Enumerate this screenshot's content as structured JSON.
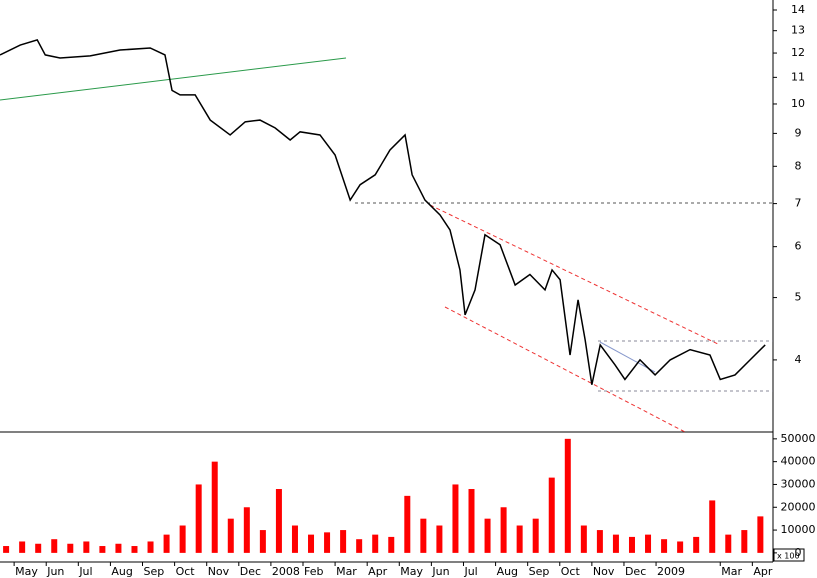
{
  "chart_data": [
    {
      "type": "line",
      "log_scale": true,
      "grid": false,
      "ylim": [
        3.09,
        14.51
      ],
      "yticks": [
        4,
        5,
        6,
        7,
        8,
        9,
        10,
        11,
        12,
        13,
        14
      ],
      "xlim": [
        -0.44,
        23.55
      ],
      "series": [
        {
          "color": "#000000",
          "x": [
            -0.44,
            0.19,
            0.72,
            0.97,
            1.43,
            2.37,
            3.3,
            4.24,
            4.7,
            4.92,
            5.17,
            5.64,
            6.11,
            6.73,
            7.2,
            7.66,
            8.13,
            8.6,
            8.91,
            9.53,
            10.0,
            10.47,
            10.78,
            11.25,
            11.71,
            12.18,
            12.4,
            12.8,
            13.27,
            13.58,
            13.89,
            14.05,
            14.36,
            14.67,
            15.14,
            15.61,
            16.07,
            16.54,
            16.76,
            17.01,
            17.32,
            17.57,
            17.79,
            18.0,
            18.26,
            18.72,
            19.03,
            19.5,
            19.97,
            20.44,
            21.06,
            21.68,
            22.0,
            22.46,
            22.93,
            23.4
          ],
          "values": [
            11.92,
            12.35,
            12.58,
            11.92,
            11.79,
            11.88,
            12.13,
            12.22,
            11.92,
            10.5,
            10.33,
            10.33,
            9.44,
            8.95,
            9.38,
            9.44,
            9.18,
            8.79,
            9.05,
            8.95,
            8.33,
            7.09,
            7.49,
            7.76,
            8.48,
            8.95,
            7.76,
            7.09,
            6.72,
            6.37,
            5.52,
            4.7,
            5.14,
            6.26,
            6.04,
            5.23,
            5.43,
            5.14,
            5.52,
            5.33,
            4.07,
            4.96,
            4.3,
            3.66,
            4.22,
            3.93,
            3.73,
            4.0,
            3.79,
            4.0,
            4.15,
            4.07,
            3.73,
            3.79,
            4.0,
            4.22
          ]
        }
      ]
    },
    {
      "type": "bar",
      "ylim": [
        -4000,
        53000
      ],
      "yticks": [
        0,
        10000,
        20000,
        30000,
        40000,
        50000
      ],
      "xlim": [
        -0.44,
        23.55
      ],
      "volume_unit": "x 100",
      "xticks": [
        {
          "value": 0,
          "label": "May"
        },
        {
          "value": 1,
          "label": "Jun"
        },
        {
          "value": 2,
          "label": "Jul"
        },
        {
          "value": 3,
          "label": "Aug"
        },
        {
          "value": 4,
          "label": "Sep"
        },
        {
          "value": 5,
          "label": "Oct"
        },
        {
          "value": 6,
          "label": "Nov"
        },
        {
          "value": 7,
          "label": "Dec"
        },
        {
          "value": 8,
          "label": "2008"
        },
        {
          "value": 9,
          "label": "Feb"
        },
        {
          "value": 10,
          "label": "Mar"
        },
        {
          "value": 11,
          "label": "Apr"
        },
        {
          "value": 12,
          "label": "May"
        },
        {
          "value": 13,
          "label": "Jun"
        },
        {
          "value": 14,
          "label": "Jul"
        },
        {
          "value": 15,
          "label": "Aug"
        },
        {
          "value": 16,
          "label": "Sep"
        },
        {
          "value": 17,
          "label": "Oct"
        },
        {
          "value": 18,
          "label": "Nov"
        },
        {
          "value": 19,
          "label": "Dec"
        },
        {
          "value": 20,
          "label": "2009"
        },
        {
          "value": 22,
          "label": "Mar"
        },
        {
          "value": 23,
          "label": "Apr"
        }
      ],
      "series": [
        {
          "color": "#ff0000",
          "x": [
            -0.25,
            0.25,
            0.75,
            1.25,
            1.75,
            2.25,
            2.75,
            3.25,
            3.75,
            4.25,
            4.75,
            5.25,
            5.75,
            6.25,
            6.75,
            7.25,
            7.75,
            8.25,
            8.75,
            9.25,
            9.75,
            10.25,
            10.75,
            11.25,
            11.75,
            12.25,
            12.75,
            13.25,
            13.75,
            14.25,
            14.75,
            15.25,
            15.75,
            16.25,
            16.75,
            17.25,
            17.75,
            18.25,
            18.75,
            19.25,
            19.75,
            20.25,
            20.75,
            21.25,
            21.75,
            22.25,
            22.75,
            23.25
          ],
          "values": [
            3000,
            5000,
            4000,
            6000,
            4000,
            5000,
            3000,
            4000,
            3000,
            5000,
            8000,
            12000,
            30000,
            40000,
            15000,
            20000,
            10000,
            28000,
            12000,
            8000,
            9000,
            10000,
            6000,
            8000,
            7000,
            25000,
            15000,
            12000,
            30000,
            28000,
            15000,
            20000,
            12000,
            15000,
            33000,
            50000,
            12000,
            10000,
            8000,
            7000,
            8000,
            6000,
            5000,
            7000,
            23000,
            8000,
            10000,
            16000
          ]
        }
      ]
    }
  ]
}
